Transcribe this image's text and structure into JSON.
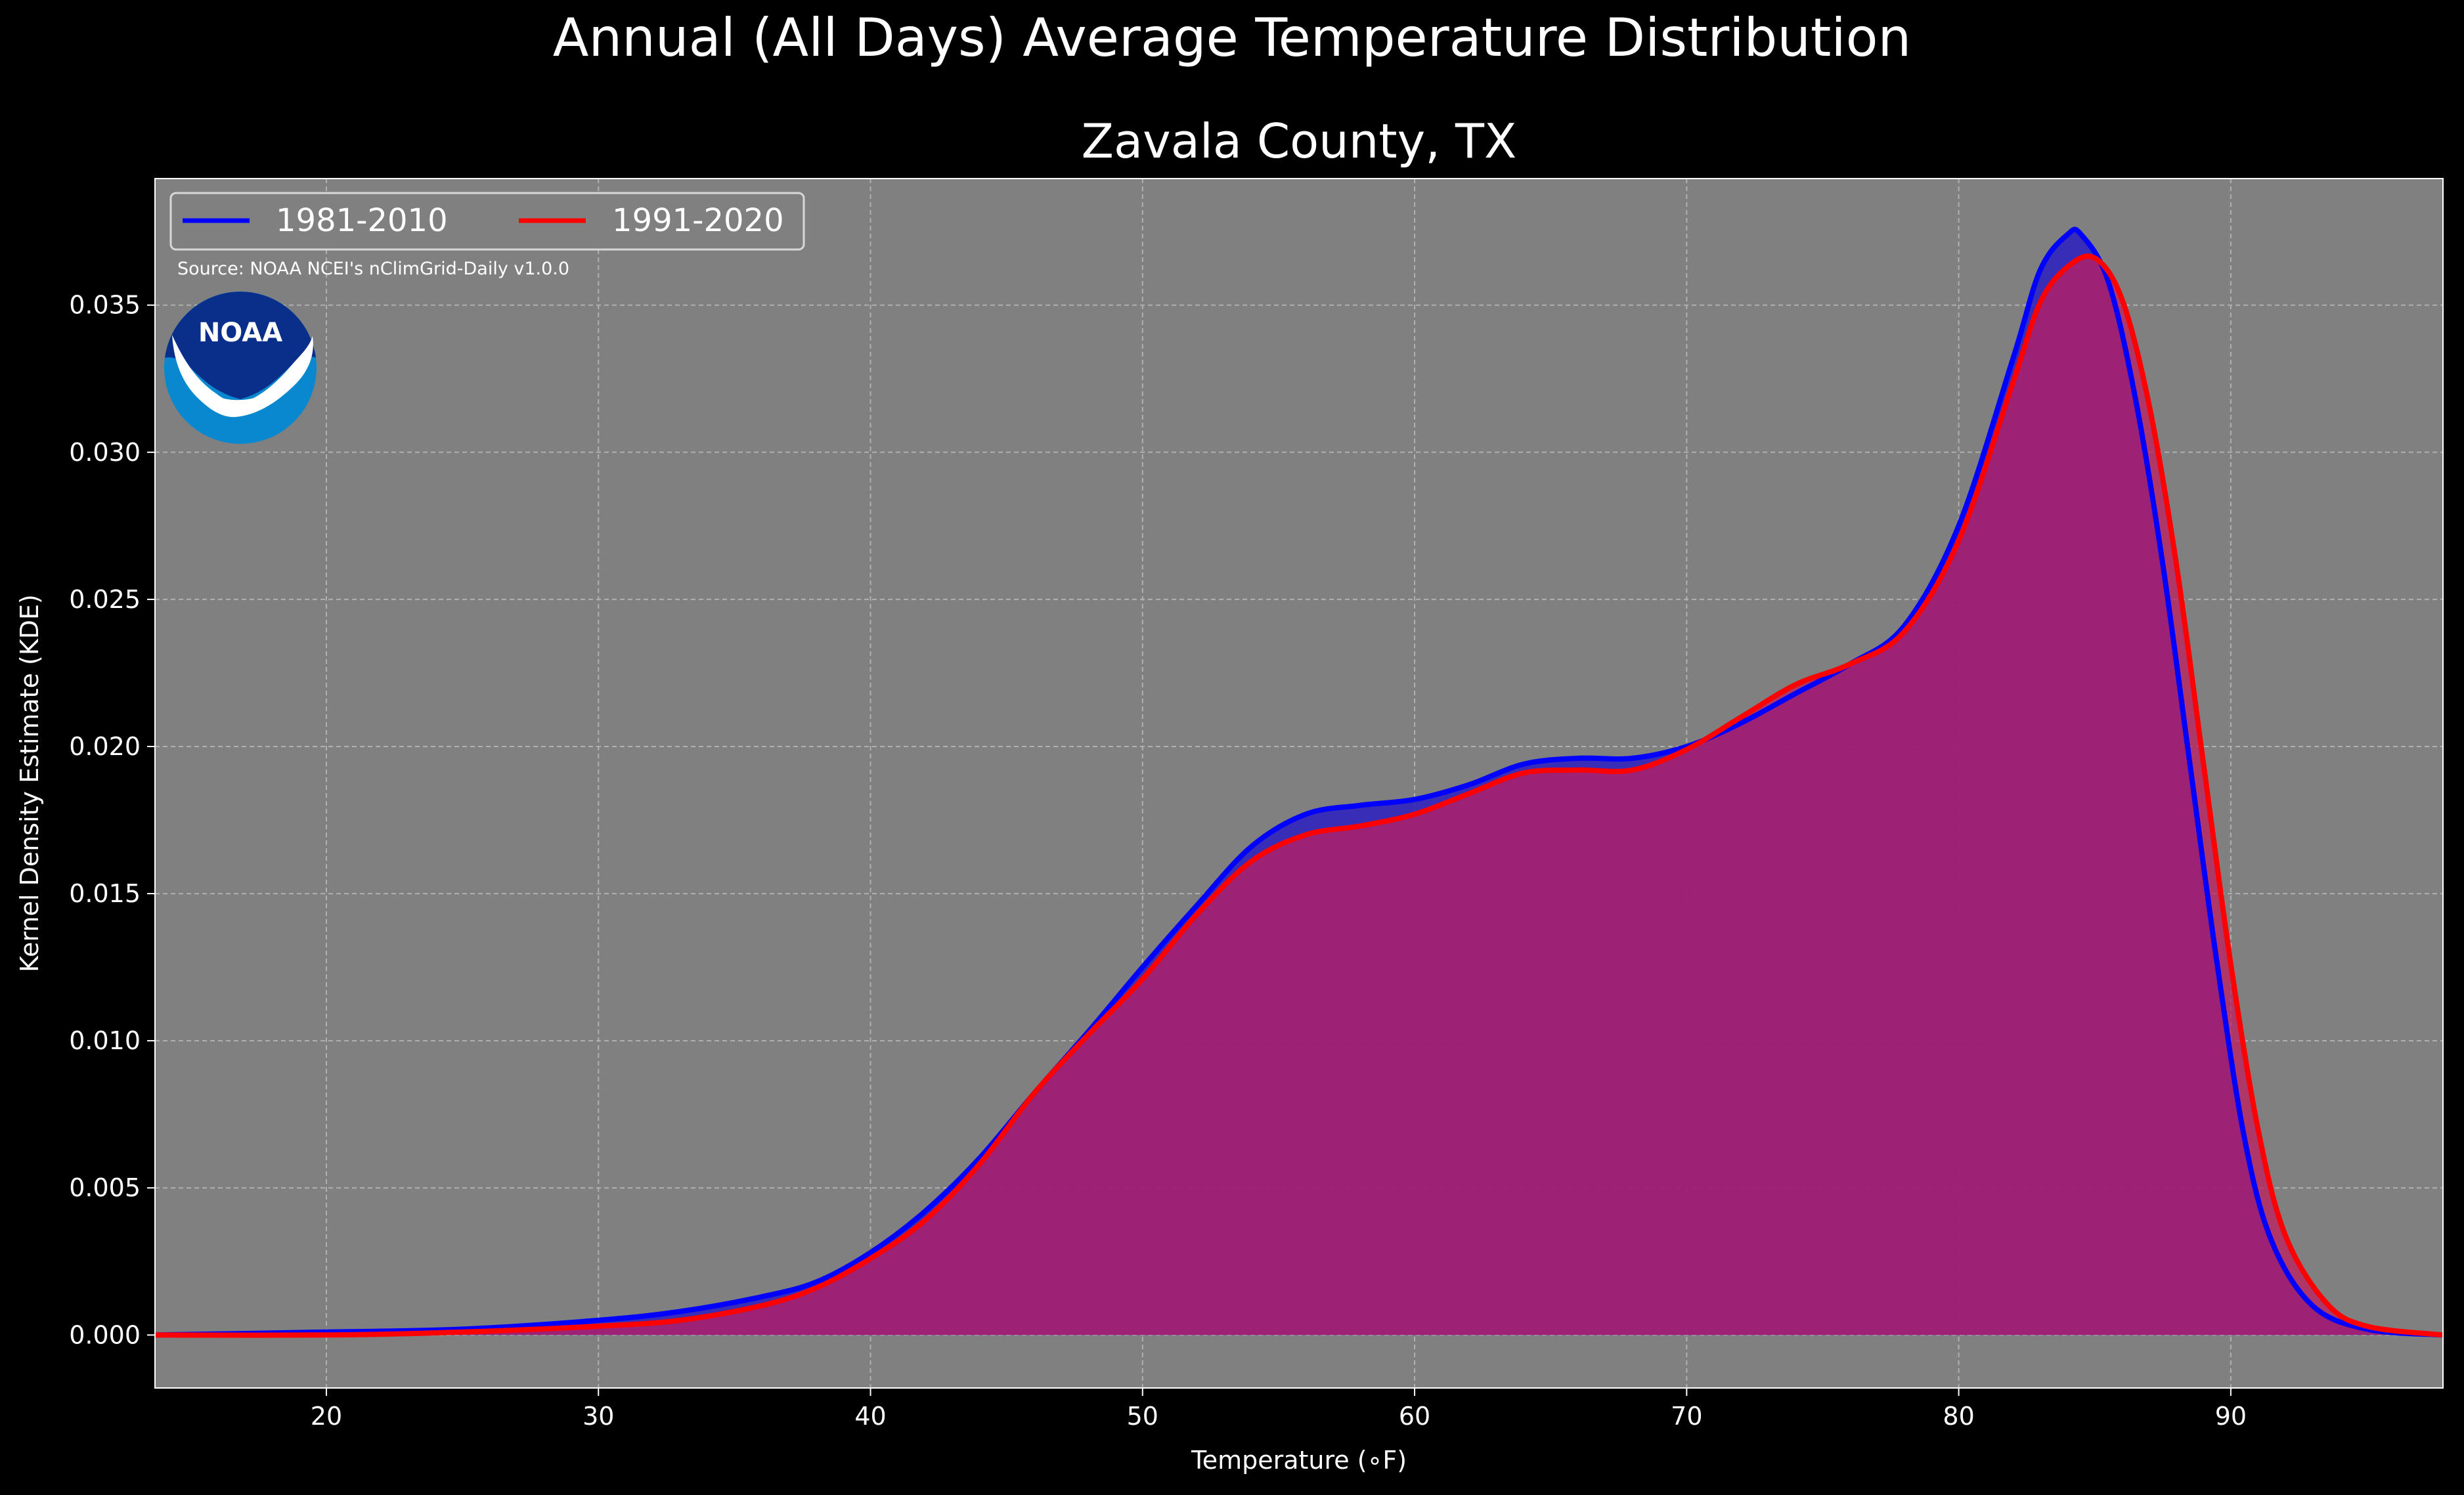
{
  "chart_data": {
    "type": "area",
    "title": "Annual (All Days) Average Temperature Distribution",
    "subtitle": "Zavala County, TX",
    "xlabel": "Temperature (∘F)",
    "ylabel": "Kernel Density Estimate (KDE)",
    "xlim": [
      13.7,
      97.8
    ],
    "ylim": [
      -0.0018,
      0.0393
    ],
    "xticks": [
      20,
      30,
      40,
      50,
      60,
      70,
      80,
      90
    ],
    "yticks": [
      0.0,
      0.005,
      0.01,
      0.015,
      0.02,
      0.025,
      0.03,
      0.035
    ],
    "ytick_labels": [
      "0.000",
      "0.005",
      "0.010",
      "0.015",
      "0.020",
      "0.025",
      "0.030",
      "0.035"
    ],
    "grid": true,
    "legend_position": "top-left",
    "source_note": "Source: NOAA NCEI's nClimGrid-Daily v1.0.0",
    "logo_text": "NOAA",
    "background": "#000000",
    "plot_background": "#808080",
    "series": [
      {
        "name": "1981-2010",
        "color": "#0000ff",
        "fill": "#2b1fbf",
        "points": [
          [
            13.7,
            0.0
          ],
          [
            20,
            0.0001
          ],
          [
            25,
            0.0002
          ],
          [
            30,
            0.0005
          ],
          [
            33,
            0.0008
          ],
          [
            36,
            0.0013
          ],
          [
            38,
            0.0018
          ],
          [
            40,
            0.0028
          ],
          [
            42,
            0.0042
          ],
          [
            44,
            0.006
          ],
          [
            46,
            0.0082
          ],
          [
            48,
            0.0103
          ],
          [
            50,
            0.0125
          ],
          [
            52,
            0.0146
          ],
          [
            54,
            0.0166
          ],
          [
            56,
            0.0177
          ],
          [
            58,
            0.018
          ],
          [
            60,
            0.0182
          ],
          [
            62,
            0.0187
          ],
          [
            64,
            0.0194
          ],
          [
            66,
            0.0196
          ],
          [
            68,
            0.0196
          ],
          [
            70,
            0.02
          ],
          [
            72,
            0.0208
          ],
          [
            74,
            0.0218
          ],
          [
            76,
            0.0228
          ],
          [
            78,
            0.0241
          ],
          [
            80,
            0.0275
          ],
          [
            82,
            0.0332
          ],
          [
            83,
            0.0362
          ],
          [
            84,
            0.0374
          ],
          [
            84.5,
            0.0374
          ],
          [
            85.5,
            0.0358
          ],
          [
            86.5,
            0.0318
          ],
          [
            87.5,
            0.0262
          ],
          [
            88.5,
            0.0194
          ],
          [
            89.5,
            0.0126
          ],
          [
            90.5,
            0.0067
          ],
          [
            91.5,
            0.0032
          ],
          [
            93,
            0.001
          ],
          [
            95,
            0.0002
          ],
          [
            97.8,
            0.0
          ]
        ]
      },
      {
        "name": "1991-2020",
        "color": "#ff0000",
        "fill": "#bf1f5f",
        "points": [
          [
            13.7,
            0.0
          ],
          [
            20,
            0.0
          ],
          [
            25,
            0.0001
          ],
          [
            30,
            0.0003
          ],
          [
            33,
            0.0005
          ],
          [
            36,
            0.001
          ],
          [
            38,
            0.0016
          ],
          [
            40,
            0.0026
          ],
          [
            42,
            0.0039
          ],
          [
            44,
            0.0058
          ],
          [
            46,
            0.0082
          ],
          [
            48,
            0.0102
          ],
          [
            50,
            0.0121
          ],
          [
            52,
            0.0143
          ],
          [
            54,
            0.0161
          ],
          [
            56,
            0.017
          ],
          [
            58,
            0.0173
          ],
          [
            60,
            0.0177
          ],
          [
            62,
            0.0184
          ],
          [
            64,
            0.0191
          ],
          [
            66,
            0.0192
          ],
          [
            68,
            0.0192
          ],
          [
            70,
            0.0199
          ],
          [
            72,
            0.021
          ],
          [
            74,
            0.0221
          ],
          [
            76,
            0.0228
          ],
          [
            78,
            0.0239
          ],
          [
            80,
            0.027
          ],
          [
            82,
            0.0324
          ],
          [
            83,
            0.0351
          ],
          [
            84,
            0.0363
          ],
          [
            85,
            0.0366
          ],
          [
            86,
            0.0352
          ],
          [
            87,
            0.0316
          ],
          [
            88,
            0.0262
          ],
          [
            89,
            0.0194
          ],
          [
            90,
            0.0126
          ],
          [
            91,
            0.007
          ],
          [
            92,
            0.0034
          ],
          [
            93.5,
            0.0011
          ],
          [
            95,
            0.0003
          ],
          [
            97.8,
            0.0
          ]
        ]
      }
    ]
  }
}
